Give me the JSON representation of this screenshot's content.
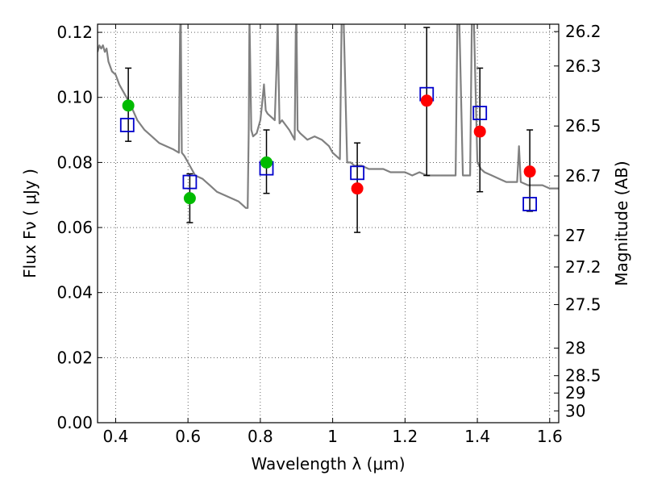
{
  "chart_data": {
    "type": "scatter",
    "xlabel": "Wavelength  λ (μm)",
    "ylabel": "Flux  Fν  ( μJy )",
    "y2label": "Magnitude (AB)",
    "xlim": [
      0.35,
      1.625
    ],
    "ylim": [
      0.0,
      0.1225
    ],
    "grid": true,
    "x_ticks": [
      0.4,
      0.6,
      0.8,
      1.0,
      1.2,
      1.4,
      1.6
    ],
    "x_tick_labels": [
      "0.4",
      "0.6",
      "0.8",
      "1",
      "1.2",
      "1.4",
      "1.6"
    ],
    "y_ticks": [
      0.0,
      0.02,
      0.04,
      0.06,
      0.08,
      0.1,
      0.12
    ],
    "y_tick_labels": [
      "0.00",
      "0.02",
      "0.04",
      "0.06",
      "0.08",
      "0.10",
      "0.12"
    ],
    "mag_ticks": [
      26.2,
      26.3,
      26.5,
      26.7,
      27,
      27.2,
      27.5,
      28,
      28.5,
      29,
      30
    ],
    "mag_tick_labels": [
      "26.2",
      "26.3",
      "26.5",
      "26.7",
      "27",
      "27.2",
      "27.5",
      "28",
      "28.5",
      "29",
      "30"
    ],
    "series": [
      {
        "kind": "line",
        "color": "#808080",
        "x": [
          0.35,
          0.355,
          0.36,
          0.365,
          0.37,
          0.375,
          0.38,
          0.39,
          0.4,
          0.41,
          0.42,
          0.43,
          0.44,
          0.46,
          0.48,
          0.5,
          0.52,
          0.54,
          0.56,
          0.575,
          0.578,
          0.58,
          0.583,
          0.59,
          0.6,
          0.62,
          0.64,
          0.66,
          0.68,
          0.7,
          0.72,
          0.74,
          0.75,
          0.76,
          0.765,
          0.768,
          0.77,
          0.775,
          0.78,
          0.79,
          0.8,
          0.805,
          0.81,
          0.815,
          0.82,
          0.83,
          0.84,
          0.845,
          0.848,
          0.85,
          0.853,
          0.86,
          0.88,
          0.895,
          0.898,
          0.9,
          0.903,
          0.91,
          0.93,
          0.95,
          0.97,
          0.99,
          1.0,
          1.02,
          1.025,
          1.03,
          1.04,
          1.05,
          1.06,
          1.08,
          1.1,
          1.12,
          1.14,
          1.16,
          1.18,
          1.2,
          1.22,
          1.24,
          1.26,
          1.28,
          1.3,
          1.32,
          1.34,
          1.345,
          1.35,
          1.36,
          1.38,
          1.385,
          1.39,
          1.4,
          1.41,
          1.42,
          1.44,
          1.46,
          1.48,
          1.5,
          1.51,
          1.515,
          1.52,
          1.54,
          1.56,
          1.58,
          1.6,
          1.625
        ],
        "y": [
          0.114,
          0.116,
          0.115,
          0.116,
          0.114,
          0.115,
          0.111,
          0.108,
          0.107,
          0.104,
          0.102,
          0.1,
          0.098,
          0.093,
          0.09,
          0.088,
          0.086,
          0.085,
          0.084,
          0.083,
          0.12,
          0.125,
          0.083,
          0.082,
          0.08,
          0.076,
          0.075,
          0.073,
          0.071,
          0.07,
          0.069,
          0.068,
          0.067,
          0.066,
          0.066,
          0.09,
          0.125,
          0.09,
          0.088,
          0.089,
          0.093,
          0.098,
          0.104,
          0.096,
          0.095,
          0.094,
          0.093,
          0.11,
          0.125,
          0.11,
          0.092,
          0.093,
          0.09,
          0.087,
          0.12,
          0.125,
          0.09,
          0.089,
          0.087,
          0.088,
          0.087,
          0.085,
          0.083,
          0.081,
          0.125,
          0.125,
          0.08,
          0.08,
          0.079,
          0.079,
          0.078,
          0.078,
          0.078,
          0.077,
          0.077,
          0.077,
          0.076,
          0.077,
          0.076,
          0.076,
          0.076,
          0.076,
          0.076,
          0.125,
          0.125,
          0.076,
          0.076,
          0.125,
          0.125,
          0.08,
          0.078,
          0.077,
          0.076,
          0.075,
          0.074,
          0.074,
          0.074,
          0.085,
          0.074,
          0.073,
          0.073,
          0.073,
          0.072,
          0.072
        ]
      },
      {
        "kind": "errorbar",
        "color": "#000000",
        "x": [
          0.435,
          0.605,
          0.817,
          1.068,
          1.26,
          1.407,
          1.545
        ],
        "y": [
          0.0975,
          0.0738,
          0.08,
          0.072,
          0.099,
          0.095,
          0.0775
        ],
        "ylo": [
          0.0865,
          0.0615,
          0.0705,
          0.0585,
          0.076,
          0.071,
          0.065
        ],
        "yhi": [
          0.109,
          0.0765,
          0.09,
          0.086,
          0.1215,
          0.109,
          0.09
        ]
      },
      {
        "kind": "open-square",
        "color": "#0000cc",
        "x": [
          0.432,
          0.605,
          0.817,
          1.068,
          1.26,
          1.407,
          1.545
        ],
        "y": [
          0.0915,
          0.074,
          0.0782,
          0.0768,
          0.101,
          0.0952,
          0.0672
        ]
      },
      {
        "kind": "filled-circle",
        "color": "#00bb00",
        "x": [
          0.435,
          0.605,
          0.817
        ],
        "y": [
          0.0975,
          0.069,
          0.08
        ]
      },
      {
        "kind": "filled-circle",
        "color": "#ff0000",
        "x": [
          1.068,
          1.26,
          1.407,
          1.545
        ],
        "y": [
          0.072,
          0.099,
          0.0895,
          0.0772
        ]
      }
    ]
  }
}
